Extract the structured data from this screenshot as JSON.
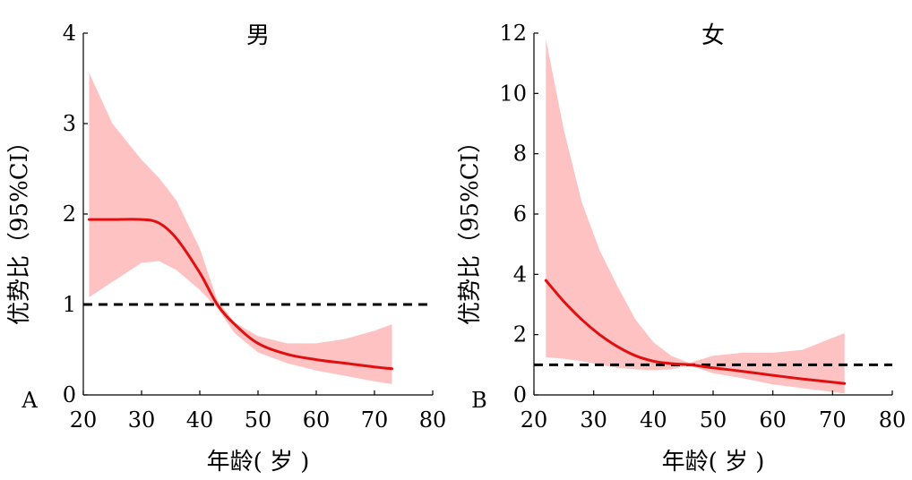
{
  "chart_data": [
    {
      "type": "line",
      "panel_label": "A",
      "title": "男",
      "xlabel": "年龄( 岁 )",
      "ylabel": "优势比（95%CI）",
      "xlim": [
        20,
        80
      ],
      "ylim": [
        0,
        4
      ],
      "xticks": [
        20,
        30,
        40,
        50,
        60,
        70,
        80
      ],
      "yticks": [
        0,
        1,
        2,
        3,
        4
      ],
      "reference_line": {
        "y": 1,
        "style": "dashed",
        "color": "#000000"
      },
      "series": [
        {
          "x": [
            21,
            25,
            30,
            33,
            36,
            40,
            43,
            46,
            50,
            55,
            60,
            65,
            70,
            73
          ],
          "y": [
            1.94,
            1.94,
            1.94,
            1.9,
            1.73,
            1.35,
            1.0,
            0.78,
            0.57,
            0.45,
            0.39,
            0.35,
            0.31,
            0.29
          ],
          "ci_lower": [
            1.08,
            1.25,
            1.46,
            1.48,
            1.38,
            1.16,
            0.96,
            0.68,
            0.47,
            0.35,
            0.27,
            0.21,
            0.15,
            0.12
          ],
          "ci_upper": [
            3.56,
            3.0,
            2.6,
            2.4,
            2.15,
            1.62,
            1.05,
            0.8,
            0.65,
            0.57,
            0.57,
            0.62,
            0.71,
            0.78
          ]
        }
      ],
      "colors": {
        "line": "#e01010",
        "band": "#ffc2c2"
      }
    },
    {
      "type": "line",
      "panel_label": "B",
      "title": "女",
      "xlabel": "年龄( 岁 )",
      "ylabel": "优势比（95%CI）",
      "xlim": [
        20,
        80
      ],
      "ylim": [
        0,
        12
      ],
      "xticks": [
        20,
        30,
        40,
        50,
        60,
        70,
        80
      ],
      "yticks": [
        0,
        2,
        4,
        6,
        8,
        10,
        12
      ],
      "reference_line": {
        "y": 1,
        "style": "dashed",
        "color": "#000000"
      },
      "series": [
        {
          "x": [
            22,
            25,
            28,
            31,
            34,
            37,
            40,
            43,
            46,
            50,
            55,
            60,
            65,
            72
          ],
          "y": [
            3.8,
            3.1,
            2.5,
            2.0,
            1.6,
            1.3,
            1.12,
            1.04,
            1.0,
            0.9,
            0.78,
            0.65,
            0.53,
            0.38
          ],
          "ci_lower": [
            1.25,
            1.2,
            1.12,
            1.0,
            0.9,
            0.85,
            0.82,
            0.85,
            0.98,
            0.72,
            0.55,
            0.35,
            0.22,
            0.05
          ],
          "ci_upper": [
            11.8,
            8.8,
            6.4,
            4.8,
            3.6,
            2.5,
            1.75,
            1.3,
            1.06,
            1.3,
            1.4,
            1.4,
            1.5,
            2.05
          ]
        }
      ],
      "colors": {
        "line": "#e01010",
        "band": "#ffc2c2"
      }
    }
  ]
}
